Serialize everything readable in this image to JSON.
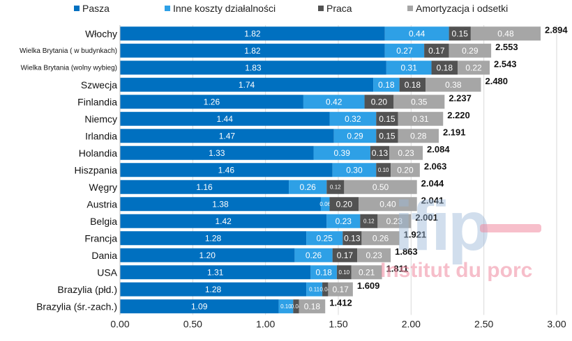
{
  "chart_data": {
    "type": "bar",
    "orientation": "horizontal",
    "stacked": true,
    "title": "",
    "xlabel": "",
    "ylabel": "",
    "xlim": [
      0,
      3.0
    ],
    "x_ticks": [
      "0.00",
      "0.50",
      "1.00",
      "1.50",
      "2.00",
      "2.50",
      "3.00"
    ],
    "x_tick_values": [
      0,
      0.5,
      1.0,
      1.5,
      2.0,
      2.5,
      3.0
    ],
    "grid": "vertical",
    "legend_position": "top",
    "categories": [
      "Włochy",
      "Wielka Brytania ( w budynkach)",
      "Wielka Brytania (wolny wybieg)",
      "Szwecja",
      "Finlandia",
      "Niemcy",
      "Irlandia",
      "Holandia",
      "Hiszpania",
      "Węgry",
      "Austria",
      "Belgia",
      "Francja",
      "Dania",
      "USA",
      "Brazylia (płd.)",
      "Brazylia (śr.-zach.)"
    ],
    "series": [
      {
        "name": "Pasza",
        "color": "#0070c0",
        "values": [
          1.82,
          1.82,
          1.83,
          1.74,
          1.26,
          1.44,
          1.47,
          1.33,
          1.46,
          1.16,
          1.38,
          1.42,
          1.28,
          1.2,
          1.31,
          1.28,
          1.09
        ],
        "labels": [
          "1.82",
          "1.82",
          "1.83",
          "1.74",
          "1.26",
          "1.44",
          "1.47",
          "1.33",
          "1.46",
          "1.16",
          "1.38",
          "1.42",
          "1.28",
          "1.20",
          "1.31",
          "1.28",
          "1.09"
        ]
      },
      {
        "name": "Inne koszty działalności",
        "color": "#2ea0e6",
        "values": [
          0.44,
          0.27,
          0.31,
          0.18,
          0.42,
          0.32,
          0.29,
          0.39,
          0.3,
          0.26,
          0.06,
          0.23,
          0.25,
          0.26,
          0.18,
          0.11,
          0.1
        ],
        "labels": [
          "0.44",
          "0.27",
          "0.31",
          "0.18",
          "0.42",
          "0.32",
          "0.29",
          "0.39",
          "0.30",
          "0.26",
          "0.06",
          "0.23",
          "0.25",
          "0.26",
          "0.18",
          "0.11",
          "0.10"
        ]
      },
      {
        "name": "Praca",
        "color": "#525252",
        "values": [
          0.15,
          0.17,
          0.18,
          0.18,
          0.2,
          0.15,
          0.15,
          0.13,
          0.1,
          0.12,
          0.2,
          0.12,
          0.13,
          0.17,
          0.1,
          0.04,
          0.04
        ],
        "labels": [
          "0.15",
          "0.17",
          "0.18",
          "0.18",
          "0.20",
          "0.15",
          "0.15",
          "0.13",
          "0.10",
          "0.12",
          "0.20",
          "0.12",
          "0.13",
          "0.17",
          "0.10",
          "0.04",
          "0.04"
        ]
      },
      {
        "name": "Amortyzacja i odsetki",
        "color": "#a6a6a6",
        "values": [
          0.48,
          0.29,
          0.22,
          0.38,
          0.35,
          0.31,
          0.28,
          0.23,
          0.2,
          0.5,
          0.4,
          0.23,
          0.26,
          0.23,
          0.21,
          0.17,
          0.18
        ],
        "labels": [
          "0.48",
          "0.29",
          "0.22",
          "0.38",
          "0.35",
          "0.31",
          "0.28",
          "0.23",
          "0.20",
          "0.50",
          "0.40",
          "0.23",
          "0.26",
          "0.23",
          "0.21",
          "0.17",
          "0.18"
        ]
      }
    ],
    "totals": [
      2.894,
      2.553,
      2.543,
      2.48,
      2.237,
      2.22,
      2.191,
      2.084,
      2.063,
      2.044,
      2.041,
      2.001,
      1.921,
      1.863,
      1.811,
      1.609,
      1.412
    ],
    "total_labels": [
      "2.894",
      "2.553",
      "2.543",
      "2.480",
      "2.237",
      "2.220",
      "2.191",
      "2.084",
      "2.063",
      "2.044",
      "2.041",
      "2.001",
      "1.921",
      "1.863",
      "1.811",
      "1.609",
      "1.412"
    ]
  },
  "watermark": {
    "logo": "ifip",
    "text": "Institut du porc"
  }
}
